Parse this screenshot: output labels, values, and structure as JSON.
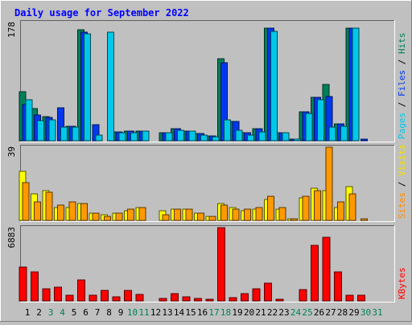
{
  "chart_data": [
    {
      "type": "bar",
      "title": "Daily usage for September 2022",
      "ymax_label": "178",
      "ylim": [
        0,
        178
      ],
      "legend": [
        {
          "label": "Pages",
          "color": "#00c8e8"
        },
        {
          "label": "Files",
          "color": "#0038f0"
        },
        {
          "label": "Hits",
          "color": "#00805a"
        }
      ],
      "categories": [
        "1",
        "2",
        "3",
        "4",
        "5",
        "6",
        "7",
        "8",
        "9",
        "10",
        "11",
        "12",
        "13",
        "14",
        "15",
        "16",
        "17",
        "18",
        "19",
        "20",
        "21",
        "22",
        "23",
        "24",
        "25",
        "26",
        "27",
        "28",
        "29",
        "30",
        "31"
      ],
      "weekend_days": [
        "3",
        "4",
        "10",
        "11",
        "17",
        "18",
        "24",
        "25",
        "30",
        "31"
      ],
      "series": [
        {
          "name": "Hits",
          "color": "#00805a",
          "values": [
            74,
            48,
            36,
            0,
            22,
            167,
            0,
            0,
            13,
            14,
            14,
            0,
            12,
            18,
            14,
            11,
            7,
            124,
            29,
            12,
            18,
            170,
            12,
            2,
            44,
            65,
            85,
            26,
            170,
            0,
            0
          ]
        },
        {
          "name": "Files",
          "color": "#0038f0",
          "values": [
            54,
            39,
            35,
            50,
            22,
            164,
            24,
            0,
            13,
            14,
            14,
            0,
            12,
            18,
            14,
            11,
            7,
            118,
            29,
            12,
            18,
            170,
            12,
            2,
            44,
            65,
            67,
            26,
            170,
            3,
            0
          ]
        },
        {
          "name": "Pages",
          "color": "#00c8e8",
          "values": [
            62,
            30,
            32,
            20,
            21,
            161,
            8,
            164,
            12,
            12,
            14,
            0,
            12,
            16,
            14,
            9,
            6,
            31,
            16,
            9,
            13,
            165,
            12,
            2,
            41,
            62,
            20,
            22,
            169,
            0,
            0
          ]
        }
      ]
    },
    {
      "type": "bar",
      "ymax_label": "39",
      "ylim": [
        0,
        39
      ],
      "legend": [
        {
          "label": "Sites",
          "color": "#ff8c00"
        },
        {
          "label": "Visits",
          "color": "#f0e000"
        }
      ],
      "categories": [
        "1",
        "2",
        "3",
        "4",
        "5",
        "6",
        "7",
        "8",
        "9",
        "10",
        "11",
        "12",
        "13",
        "14",
        "15",
        "16",
        "17",
        "18",
        "19",
        "20",
        "21",
        "22",
        "23",
        "24",
        "25",
        "26",
        "27",
        "28",
        "29",
        "30",
        "31"
      ],
      "series": [
        {
          "name": "Visits",
          "color": "#ffff00",
          "values": [
            26,
            14,
            16,
            7,
            7,
            9,
            4,
            3,
            4,
            5,
            7,
            0,
            5,
            6,
            6,
            4,
            2,
            9,
            7,
            5,
            6,
            11,
            6,
            1,
            12,
            17,
            16,
            7,
            18,
            0,
            0
          ]
        },
        {
          "name": "Sites",
          "color": "#ff9900",
          "values": [
            20,
            10,
            15,
            8,
            10,
            9,
            4,
            2,
            4,
            6,
            7,
            0,
            3,
            6,
            6,
            4,
            2,
            8,
            6,
            6,
            7,
            13,
            7,
            1,
            13,
            16,
            39,
            10,
            14,
            1,
            0
          ]
        }
      ]
    },
    {
      "type": "bar",
      "ymax_label": "6883",
      "ylim": [
        0,
        6883
      ],
      "legend": [
        {
          "label": "KBytes",
          "color": "#ff0000"
        }
      ],
      "categories": [
        "1",
        "2",
        "3",
        "4",
        "5",
        "6",
        "7",
        "8",
        "9",
        "10",
        "11",
        "12",
        "13",
        "14",
        "15",
        "16",
        "17",
        "18",
        "19",
        "20",
        "21",
        "22",
        "23",
        "24",
        "25",
        "26",
        "27",
        "28",
        "29",
        "30",
        "31"
      ],
      "series": [
        {
          "name": "KBytes",
          "color": "#ff0000",
          "values": [
            3200,
            2750,
            1100,
            1250,
            550,
            1950,
            550,
            950,
            400,
            950,
            600,
            0,
            200,
            700,
            400,
            200,
            150,
            6883,
            300,
            650,
            1150,
            1650,
            150,
            0,
            1050,
            5200,
            5950,
            2750,
            550,
            550,
            0
          ]
        }
      ]
    }
  ],
  "colors": {
    "page_bg": "#c0c0c0",
    "plot_bg": "#c0c0c0",
    "title": "#0000ff",
    "weekday_label": "#000000",
    "weekend_label": "#00805a"
  }
}
